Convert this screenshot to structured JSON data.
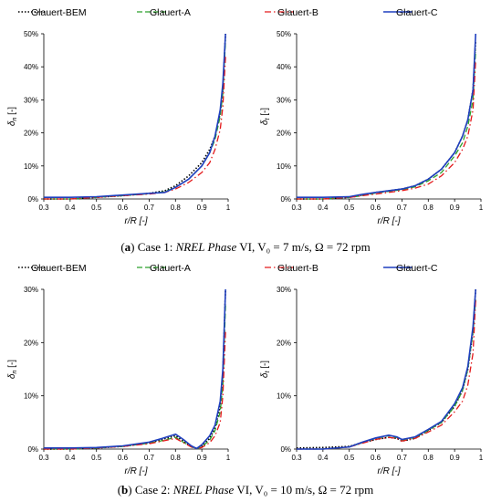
{
  "legend": [
    {
      "name": "Glauert-BEM",
      "color": "#000000",
      "dash": "dot"
    },
    {
      "name": "Glauert-A",
      "color": "#2ca02c",
      "dash": "dash"
    },
    {
      "name": "Glauert-B",
      "color": "#e31a1c",
      "dash": "dashdot"
    },
    {
      "name": "Glauert-C",
      "color": "#1f3fbf",
      "dash": "solid"
    }
  ],
  "captions": {
    "a": {
      "tag": "a",
      "pre": "Case 1: ",
      "italic": "NREL Phase",
      "roman": "VI",
      "rest": ", V₀ = 7 m/s, Ω = 72 rpm"
    },
    "b": {
      "tag": "b",
      "pre": "Case 2: ",
      "italic": "NREL Phase",
      "roman": "VI",
      "rest": ", V₀ = 10 m/s, Ω = 72 rpm"
    }
  },
  "chart_data": [
    {
      "type": "line",
      "panel": "a-left",
      "xlabel": "r/R [-]",
      "ylabel_sym": "δ",
      "ylabel_sub": "n",
      "ylabel_unit": " [-]",
      "xlim": [
        0.3,
        1.0
      ],
      "ylim": [
        0,
        0.5
      ],
      "xticks": [
        "0.3",
        "0.4",
        "0.5",
        "0.6",
        "0.7",
        "0.8",
        "0.9",
        "1"
      ],
      "yticks": [
        "0%",
        "10%",
        "20%",
        "30%",
        "40%",
        "50%"
      ],
      "series": [
        {
          "name": "Glauert-BEM",
          "x": [
            0.3,
            0.4,
            0.5,
            0.6,
            0.7,
            0.76,
            0.8,
            0.85,
            0.9,
            0.93,
            0.95,
            0.97,
            0.98,
            0.99
          ],
          "y": [
            0.0,
            0.0,
            0.005,
            0.01,
            0.017,
            0.025,
            0.04,
            0.07,
            0.11,
            0.15,
            0.19,
            0.26,
            0.33,
            0.5
          ]
        },
        {
          "name": "Glauert-A",
          "x": [
            0.3,
            0.4,
            0.5,
            0.6,
            0.7,
            0.76,
            0.8,
            0.85,
            0.9,
            0.93,
            0.95,
            0.97,
            0.98,
            0.99
          ],
          "y": [
            0.0,
            0.0,
            0.005,
            0.01,
            0.016,
            0.022,
            0.035,
            0.06,
            0.1,
            0.14,
            0.18,
            0.25,
            0.32,
            0.48
          ]
        },
        {
          "name": "Glauert-B",
          "x": [
            0.3,
            0.4,
            0.5,
            0.6,
            0.7,
            0.76,
            0.8,
            0.85,
            0.9,
            0.93,
            0.95,
            0.97,
            0.98,
            0.99
          ],
          "y": [
            0.0,
            0.0,
            0.005,
            0.01,
            0.015,
            0.02,
            0.03,
            0.05,
            0.08,
            0.11,
            0.15,
            0.21,
            0.28,
            0.43
          ]
        },
        {
          "name": "Glauert-C",
          "x": [
            0.3,
            0.4,
            0.5,
            0.6,
            0.7,
            0.76,
            0.8,
            0.85,
            0.9,
            0.93,
            0.95,
            0.97,
            0.98,
            0.99
          ],
          "y": [
            0.005,
            0.005,
            0.007,
            0.012,
            0.017,
            0.02,
            0.035,
            0.06,
            0.1,
            0.14,
            0.19,
            0.27,
            0.35,
            0.5
          ]
        }
      ]
    },
    {
      "type": "line",
      "panel": "a-right",
      "xlabel": "r/R [-]",
      "ylabel_sym": "δ",
      "ylabel_sub": "t",
      "ylabel_unit": " [-]",
      "xlim": [
        0.3,
        1.0
      ],
      "ylim": [
        0,
        0.5
      ],
      "xticks": [
        "0.3",
        "0.4",
        "0.5",
        "0.6",
        "0.7",
        "0.8",
        "0.9",
        "1"
      ],
      "yticks": [
        "0%",
        "10%",
        "20%",
        "30%",
        "40%",
        "50%"
      ],
      "series": [
        {
          "name": "Glauert-BEM",
          "x": [
            0.3,
            0.4,
            0.5,
            0.55,
            0.6,
            0.7,
            0.75,
            0.8,
            0.85,
            0.9,
            0.93,
            0.95,
            0.97,
            0.98
          ],
          "y": [
            0.0,
            0.0,
            0.005,
            0.012,
            0.02,
            0.03,
            0.04,
            0.06,
            0.09,
            0.14,
            0.19,
            0.24,
            0.33,
            0.48
          ]
        },
        {
          "name": "Glauert-A",
          "x": [
            0.3,
            0.4,
            0.5,
            0.55,
            0.6,
            0.7,
            0.75,
            0.8,
            0.85,
            0.9,
            0.93,
            0.95,
            0.97,
            0.98
          ],
          "y": [
            0.0,
            0.0,
            0.005,
            0.01,
            0.018,
            0.028,
            0.037,
            0.055,
            0.08,
            0.13,
            0.17,
            0.22,
            0.3,
            0.45
          ]
        },
        {
          "name": "Glauert-B",
          "x": [
            0.3,
            0.4,
            0.5,
            0.55,
            0.6,
            0.7,
            0.75,
            0.8,
            0.85,
            0.9,
            0.93,
            0.95,
            0.97,
            0.98
          ],
          "y": [
            0.0,
            0.0,
            0.005,
            0.01,
            0.015,
            0.025,
            0.033,
            0.045,
            0.07,
            0.11,
            0.15,
            0.19,
            0.27,
            0.42
          ]
        },
        {
          "name": "Glauert-C",
          "x": [
            0.3,
            0.4,
            0.5,
            0.55,
            0.6,
            0.7,
            0.75,
            0.8,
            0.85,
            0.9,
            0.93,
            0.95,
            0.97,
            0.98
          ],
          "y": [
            0.005,
            0.005,
            0.007,
            0.014,
            0.02,
            0.03,
            0.04,
            0.06,
            0.09,
            0.14,
            0.19,
            0.24,
            0.33,
            0.5
          ]
        }
      ]
    },
    {
      "type": "line",
      "panel": "b-left",
      "xlabel": "r/R [-]",
      "ylabel_sym": "δ",
      "ylabel_sub": "n",
      "ylabel_unit": " [-]",
      "xlim": [
        0.3,
        1.0
      ],
      "ylim": [
        0,
        0.3
      ],
      "xticks": [
        "0.3",
        "0.4",
        "0.5",
        "0.6",
        "0.7",
        "0.8",
        "0.9",
        "1"
      ],
      "yticks": [
        "0%",
        "10%",
        "20%",
        "30%"
      ],
      "series": [
        {
          "name": "Glauert-BEM",
          "x": [
            0.3,
            0.4,
            0.5,
            0.6,
            0.7,
            0.75,
            0.8,
            0.83,
            0.86,
            0.88,
            0.9,
            0.93,
            0.95,
            0.97,
            0.98,
            0.99
          ],
          "y": [
            0.0,
            0.0,
            0.002,
            0.005,
            0.012,
            0.018,
            0.025,
            0.015,
            0.005,
            0.001,
            0.005,
            0.02,
            0.04,
            0.08,
            0.14,
            0.3
          ]
        },
        {
          "name": "Glauert-A",
          "x": [
            0.3,
            0.4,
            0.5,
            0.6,
            0.7,
            0.75,
            0.8,
            0.83,
            0.86,
            0.88,
            0.9,
            0.93,
            0.95,
            0.97,
            0.98,
            0.99
          ],
          "y": [
            0.0,
            0.0,
            0.002,
            0.005,
            0.011,
            0.016,
            0.022,
            0.013,
            0.004,
            0.001,
            0.004,
            0.017,
            0.035,
            0.07,
            0.12,
            0.27
          ]
        },
        {
          "name": "Glauert-B",
          "x": [
            0.3,
            0.4,
            0.5,
            0.6,
            0.7,
            0.75,
            0.8,
            0.83,
            0.86,
            0.88,
            0.9,
            0.93,
            0.95,
            0.97,
            0.98,
            0.99
          ],
          "y": [
            0.0,
            0.0,
            0.002,
            0.005,
            0.01,
            0.015,
            0.02,
            0.012,
            0.004,
            0.001,
            0.003,
            0.012,
            0.025,
            0.05,
            0.1,
            0.22
          ]
        },
        {
          "name": "Glauert-C",
          "x": [
            0.3,
            0.4,
            0.5,
            0.6,
            0.7,
            0.75,
            0.8,
            0.83,
            0.86,
            0.88,
            0.9,
            0.93,
            0.95,
            0.97,
            0.98,
            0.99
          ],
          "y": [
            0.002,
            0.002,
            0.003,
            0.006,
            0.013,
            0.02,
            0.028,
            0.018,
            0.006,
            0.001,
            0.008,
            0.025,
            0.045,
            0.09,
            0.15,
            0.3
          ]
        }
      ]
    },
    {
      "type": "line",
      "panel": "b-right",
      "xlabel": "r/R [-]",
      "ylabel_sym": "δ",
      "ylabel_sub": "t",
      "ylabel_unit": " [-]",
      "xlim": [
        0.3,
        1.0
      ],
      "ylim": [
        0,
        0.3
      ],
      "xticks": [
        "0.3",
        "0.4",
        "0.5",
        "0.6",
        "0.7",
        "0.8",
        "0.9",
        "1"
      ],
      "yticks": [
        "0%",
        "10%",
        "20%",
        "30%"
      ],
      "series": [
        {
          "name": "Glauert-BEM",
          "x": [
            0.3,
            0.4,
            0.5,
            0.55,
            0.6,
            0.65,
            0.68,
            0.7,
            0.75,
            0.8,
            0.85,
            0.9,
            0.93,
            0.95,
            0.97,
            0.98
          ],
          "y": [
            0.002,
            0.003,
            0.005,
            0.012,
            0.018,
            0.022,
            0.02,
            0.015,
            0.02,
            0.035,
            0.05,
            0.08,
            0.11,
            0.15,
            0.22,
            0.3
          ]
        },
        {
          "name": "Glauert-A",
          "x": [
            0.3,
            0.4,
            0.5,
            0.55,
            0.6,
            0.65,
            0.68,
            0.7,
            0.75,
            0.8,
            0.85,
            0.9,
            0.93,
            0.95,
            0.97,
            0.98
          ],
          "y": [
            0.0,
            0.0,
            0.004,
            0.012,
            0.02,
            0.025,
            0.022,
            0.017,
            0.022,
            0.035,
            0.05,
            0.08,
            0.11,
            0.15,
            0.22,
            0.28
          ]
        },
        {
          "name": "Glauert-B",
          "x": [
            0.3,
            0.4,
            0.5,
            0.55,
            0.6,
            0.65,
            0.68,
            0.7,
            0.75,
            0.8,
            0.85,
            0.9,
            0.93,
            0.95,
            0.97,
            0.98
          ],
          "y": [
            0.0,
            0.0,
            0.004,
            0.011,
            0.018,
            0.022,
            0.02,
            0.015,
            0.02,
            0.032,
            0.045,
            0.07,
            0.09,
            0.12,
            0.18,
            0.28
          ]
        },
        {
          "name": "Glauert-C",
          "x": [
            0.3,
            0.4,
            0.5,
            0.55,
            0.6,
            0.65,
            0.68,
            0.7,
            0.75,
            0.8,
            0.85,
            0.9,
            0.93,
            0.95,
            0.97,
            0.98
          ],
          "y": [
            0.0,
            0.0,
            0.004,
            0.013,
            0.021,
            0.026,
            0.023,
            0.018,
            0.023,
            0.037,
            0.052,
            0.085,
            0.115,
            0.155,
            0.23,
            0.3
          ]
        }
      ]
    }
  ]
}
